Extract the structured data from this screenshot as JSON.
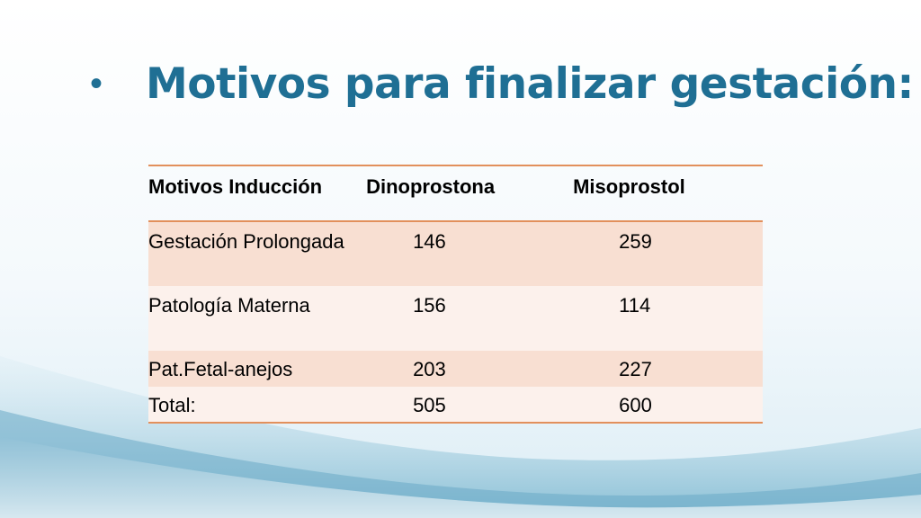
{
  "title": {
    "bullet": "•",
    "text": "Motivos para finalizar gestación:"
  },
  "table": {
    "headers": [
      "Motivos Inducción",
      "Dinoprostona",
      "Misoprostol"
    ],
    "rows": [
      {
        "motivo": "Gestación Prolongada",
        "dinoprostona": "146",
        "misoprostol": "259"
      },
      {
        "motivo": "Patología Materna",
        "dinoprostona": "156",
        "misoprostol": "114"
      },
      {
        "motivo": "Pat.Fetal-anejos",
        "dinoprostona": "203",
        "misoprostol": "227"
      },
      {
        "motivo": "Total:",
        "dinoprostona": "505",
        "misoprostol": "600"
      }
    ]
  },
  "colors": {
    "title": "#1f6f94",
    "table_rule": "#e2905c",
    "row_shade": "#f8dfd2",
    "row_light": "#fcf1ec"
  }
}
